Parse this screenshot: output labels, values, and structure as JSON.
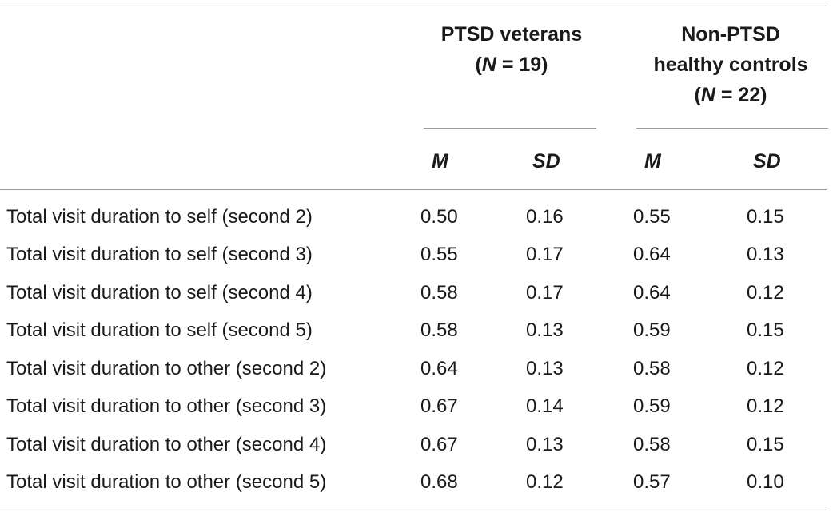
{
  "table": {
    "groups": [
      {
        "name": "PTSD veterans",
        "n_prefix": "(",
        "n_symbol": "N",
        "n_suffix": " = 19)"
      },
      {
        "name_line1": "Non-PTSD",
        "name_line2": "healthy controls",
        "n_prefix": "(",
        "n_symbol": "N",
        "n_suffix": " = 22)"
      }
    ],
    "subheaders": [
      "M",
      "SD",
      "M",
      "SD"
    ],
    "rows": [
      {
        "label": "Total visit duration to self (second 2)",
        "values": [
          "0.50",
          "0.16",
          "0.55",
          "0.15"
        ]
      },
      {
        "label": "Total visit duration to self (second 3)",
        "values": [
          "0.55",
          "0.17",
          "0.64",
          "0.13"
        ]
      },
      {
        "label": "Total visit duration to self (second 4)",
        "values": [
          "0.58",
          "0.17",
          "0.64",
          "0.12"
        ]
      },
      {
        "label": "Total visit duration to self (second 5)",
        "values": [
          "0.58",
          "0.13",
          "0.59",
          "0.15"
        ]
      },
      {
        "label": "Total visit duration to other (second 2)",
        "values": [
          "0.64",
          "0.13",
          "0.58",
          "0.12"
        ]
      },
      {
        "label": "Total visit duration to other (second 3)",
        "values": [
          "0.67",
          "0.14",
          "0.59",
          "0.12"
        ]
      },
      {
        "label": "Total visit duration to other (second 4)",
        "values": [
          "0.67",
          "0.13",
          "0.58",
          "0.15"
        ]
      },
      {
        "label": "Total visit duration to other (second 5)",
        "values": [
          "0.68",
          "0.12",
          "0.57",
          "0.10"
        ]
      }
    ]
  }
}
